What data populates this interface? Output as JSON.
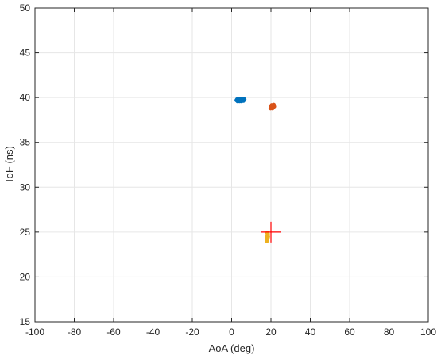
{
  "chart_data": {
    "type": "scatter",
    "xlabel": "AoA (deg)",
    "ylabel": "ToF (ns)",
    "xlim": [
      -100,
      100
    ],
    "ylim": [
      15,
      50
    ],
    "xticks": [
      -100,
      -80,
      -60,
      -40,
      -20,
      0,
      20,
      40,
      60,
      80,
      100
    ],
    "yticks": [
      15,
      20,
      25,
      30,
      35,
      40,
      45,
      50
    ],
    "grid": true,
    "series": [
      {
        "color": "#0072BD",
        "points": [
          [
            2.5,
            39.7
          ],
          [
            3,
            39.75
          ],
          [
            3.5,
            39.65
          ],
          [
            4,
            39.7
          ],
          [
            4.5,
            39.8
          ],
          [
            5,
            39.7
          ],
          [
            5.5,
            39.75
          ],
          [
            6,
            39.7
          ],
          [
            6.5,
            39.8
          ],
          [
            3,
            39.6
          ],
          [
            4,
            39.6
          ],
          [
            5,
            39.6
          ],
          [
            6,
            39.65
          ],
          [
            2.8,
            39.8
          ],
          [
            4.2,
            39.85
          ],
          [
            5.6,
            39.85
          ]
        ]
      },
      {
        "color": "#D95319",
        "points": [
          [
            19.8,
            38.8
          ],
          [
            20.2,
            38.9
          ],
          [
            20.6,
            39.0
          ],
          [
            21,
            39.1
          ],
          [
            21.4,
            39.2
          ],
          [
            20,
            39.0
          ],
          [
            20.8,
            38.8
          ],
          [
            21.6,
            39.0
          ],
          [
            20.4,
            39.15
          ],
          [
            21.2,
            38.95
          ]
        ]
      },
      {
        "color": "#EDB120",
        "points": [
          [
            17.8,
            24.2
          ],
          [
            18,
            24.4
          ],
          [
            18.2,
            24.6
          ],
          [
            18.4,
            24.8
          ],
          [
            17.9,
            24.0
          ],
          [
            18.3,
            24.3
          ],
          [
            18.1,
            24.9
          ],
          [
            18.5,
            24.5
          ]
        ]
      }
    ],
    "markers": [
      {
        "shape": "plus",
        "color": "#FF0000",
        "x": 20,
        "y": 25
      }
    ]
  }
}
